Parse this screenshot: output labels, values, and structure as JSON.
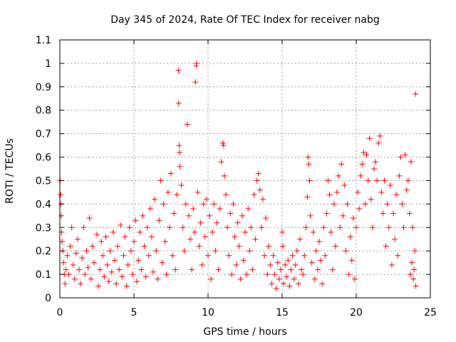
{
  "chart_data": {
    "type": "scatter",
    "title": "Day 345 of 2024, Rate Of TEC Index for receiver nabg",
    "xlabel": "GPS time / hours",
    "ylabel": "ROTI / TECUs",
    "xlim": [
      0,
      25
    ],
    "ylim": [
      0,
      1.1
    ],
    "grid": true,
    "marker": "+",
    "x_ticks": [
      0,
      5,
      10,
      15,
      20,
      25
    ],
    "x_tick_labels": [
      "0",
      "5",
      "10",
      "15",
      "20",
      "25"
    ],
    "y_ticks": [
      0,
      0.1,
      0.2,
      0.3,
      0.4,
      0.5,
      0.6,
      0.7,
      0.8,
      0.9,
      1,
      1.1
    ],
    "y_tick_labels": [
      "0",
      "0.1",
      "0.2",
      "0.3",
      "0.4",
      "0.5",
      "0.6",
      "0.7",
      "0.8",
      "0.9",
      "1",
      "1.1"
    ],
    "series": [
      {
        "color": "#ff0000",
        "points": [
          [
            0.02,
            0.5
          ],
          [
            0.05,
            0.44
          ],
          [
            0.08,
            0.4
          ],
          [
            0.1,
            0.35
          ],
          [
            0.12,
            0.28
          ],
          [
            0.15,
            0.24
          ],
          [
            0.2,
            0.2
          ],
          [
            0.25,
            0.15
          ],
          [
            0.3,
            0.1
          ],
          [
            0.35,
            0.06
          ],
          [
            0.4,
            0.12
          ],
          [
            0.5,
            0.18
          ],
          [
            0.6,
            0.1
          ],
          [
            0.7,
            0.22
          ],
          [
            0.8,
            0.3
          ],
          [
            0.9,
            0.14
          ],
          [
            1.0,
            0.08
          ],
          [
            1.1,
            0.19
          ],
          [
            1.2,
            0.25
          ],
          [
            1.3,
            0.12
          ],
          [
            1.4,
            0.06
          ],
          [
            1.5,
            0.17
          ],
          [
            1.6,
            0.3
          ],
          [
            1.7,
            0.1
          ],
          [
            1.8,
            0.2
          ],
          [
            1.9,
            0.13
          ],
          [
            2.0,
            0.34
          ],
          [
            2.1,
            0.08
          ],
          [
            2.2,
            0.22
          ],
          [
            2.3,
            0.15
          ],
          [
            2.5,
            0.27
          ],
          [
            2.6,
            0.05
          ],
          [
            2.7,
            0.12
          ],
          [
            2.8,
            0.24
          ],
          [
            2.9,
            0.18
          ],
          [
            3.0,
            0.09
          ],
          [
            3.1,
            0.26
          ],
          [
            3.2,
            0.14
          ],
          [
            3.3,
            0.07
          ],
          [
            3.4,
            0.2
          ],
          [
            3.5,
            0.11
          ],
          [
            3.6,
            0.28
          ],
          [
            3.7,
            0.16
          ],
          [
            3.8,
            0.06
          ],
          [
            3.9,
            0.22
          ],
          [
            4.0,
            0.12
          ],
          [
            4.1,
            0.31
          ],
          [
            4.2,
            0.09
          ],
          [
            4.3,
            0.18
          ],
          [
            4.4,
            0.26
          ],
          [
            4.5,
            0.05
          ],
          [
            4.6,
            0.14
          ],
          [
            4.7,
            0.3
          ],
          [
            4.8,
            0.2
          ],
          [
            4.9,
            0.1
          ],
          [
            5.0,
            0.24
          ],
          [
            5.1,
            0.33
          ],
          [
            5.2,
            0.07
          ],
          [
            5.3,
            0.16
          ],
          [
            5.4,
            0.28
          ],
          [
            5.5,
            0.12
          ],
          [
            5.6,
            0.35
          ],
          [
            5.7,
            0.22
          ],
          [
            5.8,
            0.09
          ],
          [
            5.9,
            0.3
          ],
          [
            6.0,
            0.18
          ],
          [
            6.1,
            0.38
          ],
          [
            6.2,
            0.26
          ],
          [
            6.3,
            0.11
          ],
          [
            6.4,
            0.42
          ],
          [
            6.5,
            0.2
          ],
          [
            6.6,
            0.08
          ],
          [
            6.7,
            0.33
          ],
          [
            6.8,
            0.5
          ],
          [
            6.9,
            0.15
          ],
          [
            7.0,
            0.4
          ],
          [
            7.1,
            0.24
          ],
          [
            7.2,
            0.1
          ],
          [
            7.3,
            0.45
          ],
          [
            7.4,
            0.3
          ],
          [
            7.5,
            0.53
          ],
          [
            7.6,
            0.18
          ],
          [
            7.7,
            0.36
          ],
          [
            7.8,
            0.12
          ],
          [
            7.9,
            0.44
          ],
          [
            8.0,
            0.97
          ],
          [
            8.02,
            0.83
          ],
          [
            8.05,
            0.65
          ],
          [
            8.08,
            0.62
          ],
          [
            8.1,
            0.56
          ],
          [
            8.2,
            0.48
          ],
          [
            8.3,
            0.3
          ],
          [
            8.4,
            0.2
          ],
          [
            8.5,
            0.4
          ],
          [
            8.6,
            0.74
          ],
          [
            8.7,
            0.35
          ],
          [
            8.8,
            0.25
          ],
          [
            8.9,
            0.12
          ],
          [
            9.0,
            0.38
          ],
          [
            9.1,
            0.28
          ],
          [
            9.15,
            0.92
          ],
          [
            9.2,
            0.99
          ],
          [
            9.22,
            1.0
          ],
          [
            9.3,
            0.45
          ],
          [
            9.4,
            0.22
          ],
          [
            9.5,
            0.32
          ],
          [
            9.6,
            0.14
          ],
          [
            9.7,
            0.4
          ],
          [
            9.8,
            0.26
          ],
          [
            9.9,
            0.42
          ],
          [
            10.0,
            0.18
          ],
          [
            10.1,
            0.35
          ],
          [
            10.2,
            0.08
          ],
          [
            10.3,
            0.28
          ],
          [
            10.4,
            0.4
          ],
          [
            10.5,
            0.2
          ],
          [
            10.6,
            0.32
          ],
          [
            10.7,
            0.12
          ],
          [
            10.8,
            0.38
          ],
          [
            10.9,
            0.58
          ],
          [
            11.0,
            0.66
          ],
          [
            11.05,
            0.65
          ],
          [
            11.1,
            0.52
          ],
          [
            11.2,
            0.44
          ],
          [
            11.3,
            0.3
          ],
          [
            11.4,
            0.18
          ],
          [
            11.5,
            0.36
          ],
          [
            11.6,
            0.1
          ],
          [
            11.7,
            0.4
          ],
          [
            11.8,
            0.26
          ],
          [
            11.9,
            0.14
          ],
          [
            12.0,
            0.32
          ],
          [
            12.1,
            0.22
          ],
          [
            12.2,
            0.08
          ],
          [
            12.3,
            0.35
          ],
          [
            12.4,
            0.16
          ],
          [
            12.5,
            0.28
          ],
          [
            12.6,
            0.1
          ],
          [
            12.7,
            0.38
          ],
          [
            12.8,
            0.2
          ],
          [
            12.9,
            0.3
          ],
          [
            13.0,
            0.12
          ],
          [
            13.1,
            0.44
          ],
          [
            13.2,
            0.25
          ],
          [
            13.3,
            0.5
          ],
          [
            13.4,
            0.53
          ],
          [
            13.5,
            0.46
          ],
          [
            13.6,
            0.3
          ],
          [
            13.7,
            0.42
          ],
          [
            13.8,
            0.18
          ],
          [
            13.9,
            0.34
          ],
          [
            14.0,
            0.1
          ],
          [
            14.1,
            0.22
          ],
          [
            14.2,
            0.14
          ],
          [
            14.3,
            0.06
          ],
          [
            14.4,
            0.18
          ],
          [
            14.5,
            0.1
          ],
          [
            14.6,
            0.04
          ],
          [
            14.7,
            0.15
          ],
          [
            14.8,
            0.08
          ],
          [
            14.9,
            0.12
          ],
          [
            15.0,
            0.28
          ],
          [
            15.05,
            0.22
          ],
          [
            15.1,
            0.06
          ],
          [
            15.2,
            0.14
          ],
          [
            15.3,
            0.09
          ],
          [
            15.4,
            0.16
          ],
          [
            15.5,
            0.05
          ],
          [
            15.6,
            0.12
          ],
          [
            15.7,
            0.18
          ],
          [
            15.8,
            0.08
          ],
          [
            15.9,
            0.14
          ],
          [
            16.0,
            0.2
          ],
          [
            16.1,
            0.06
          ],
          [
            16.2,
            0.25
          ],
          [
            16.3,
            0.12
          ],
          [
            16.4,
            0.1
          ],
          [
            16.5,
            0.18
          ],
          [
            16.6,
            0.3
          ],
          [
            16.7,
            0.43
          ],
          [
            16.75,
            0.6
          ],
          [
            16.8,
            0.57
          ],
          [
            16.85,
            0.5
          ],
          [
            16.9,
            0.35
          ],
          [
            17.0,
            0.15
          ],
          [
            17.1,
            0.28
          ],
          [
            17.2,
            0.08
          ],
          [
            17.3,
            0.2
          ],
          [
            17.4,
            0.12
          ],
          [
            17.5,
            0.24
          ],
          [
            17.6,
            0.16
          ],
          [
            17.7,
            0.06
          ],
          [
            17.8,
            0.3
          ],
          [
            17.9,
            0.18
          ],
          [
            18.0,
            0.36
          ],
          [
            18.1,
            0.5
          ],
          [
            18.2,
            0.44
          ],
          [
            18.3,
            0.28
          ],
          [
            18.4,
            0.12
          ],
          [
            18.5,
            0.4
          ],
          [
            18.6,
            0.22
          ],
          [
            18.7,
            0.45
          ],
          [
            18.8,
            0.52
          ],
          [
            18.9,
            0.3
          ],
          [
            19.0,
            0.57
          ],
          [
            19.1,
            0.35
          ],
          [
            19.2,
            0.48
          ],
          [
            19.3,
            0.2
          ],
          [
            19.4,
            0.4
          ],
          [
            19.5,
            0.1
          ],
          [
            19.6,
            0.26
          ],
          [
            19.7,
            0.16
          ],
          [
            19.8,
            0.34
          ],
          [
            19.9,
            0.08
          ],
          [
            20.0,
            0.3
          ],
          [
            20.1,
            0.45
          ],
          [
            20.2,
            0.38
          ],
          [
            20.3,
            0.52
          ],
          [
            20.4,
            0.57
          ],
          [
            20.5,
            0.62
          ],
          [
            20.6,
            0.4
          ],
          [
            20.7,
            0.61
          ],
          [
            20.8,
            0.5
          ],
          [
            20.9,
            0.68
          ],
          [
            21.0,
            0.42
          ],
          [
            21.1,
            0.3
          ],
          [
            21.2,
            0.55
          ],
          [
            21.3,
            0.58
          ],
          [
            21.4,
            0.5
          ],
          [
            21.5,
            0.66
          ],
          [
            21.6,
            0.69
          ],
          [
            21.7,
            0.45
          ],
          [
            21.8,
            0.36
          ],
          [
            21.9,
            0.5
          ],
          [
            22.0,
            0.22
          ],
          [
            22.1,
            0.4
          ],
          [
            22.2,
            0.3
          ],
          [
            22.3,
            0.48
          ],
          [
            22.4,
            0.14
          ],
          [
            22.5,
            0.36
          ],
          [
            22.6,
            0.25
          ],
          [
            22.7,
            0.44
          ],
          [
            22.8,
            0.18
          ],
          [
            22.9,
            0.52
          ],
          [
            23.0,
            0.6
          ],
          [
            23.1,
            0.4
          ],
          [
            23.2,
            0.3
          ],
          [
            23.3,
            0.61
          ],
          [
            23.4,
            0.46
          ],
          [
            23.5,
            0.5
          ],
          [
            23.6,
            0.36
          ],
          [
            23.7,
            0.58
          ],
          [
            23.8,
            0.3
          ],
          [
            23.9,
            0.12
          ],
          [
            24.0,
            0.87
          ],
          [
            24.02,
            0.05
          ],
          [
            23.95,
            0.2
          ],
          [
            23.85,
            0.08
          ],
          [
            23.75,
            0.15
          ],
          [
            23.65,
            0.1
          ]
        ]
      }
    ]
  }
}
